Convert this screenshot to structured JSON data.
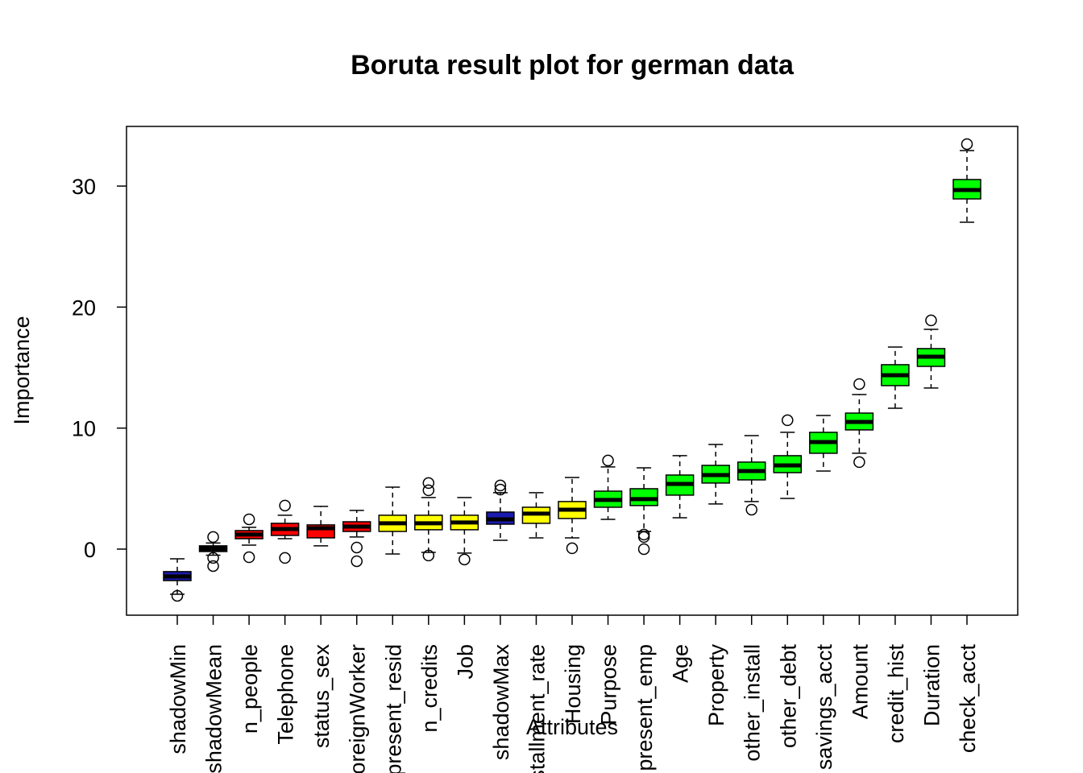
{
  "chart_data": {
    "type": "boxplot",
    "title": "Boruta result plot for german data",
    "x_label": "Attributes",
    "y_label": "Importance",
    "categories": [
      "shadowMin",
      "shadowMean",
      "n_people",
      "Telephone",
      "status_sex",
      "foreignWorker",
      "present_resid",
      "n_credits",
      "Job",
      "shadowMax",
      "installment_rate",
      "Housing",
      "Purpose",
      "present_emp",
      "Age",
      "Property",
      "other_install",
      "other_debt",
      "savings_acct",
      "Amount",
      "credit_hist",
      "Duration",
      "check_acct"
    ],
    "colors": [
      "#1a1ab0",
      "#000000",
      "#ff0000",
      "#ff0000",
      "#ff0000",
      "#ff0000",
      "#ffff00",
      "#ffff00",
      "#ffff00",
      "#1a1ab0",
      "#ffff00",
      "#ffff00",
      "#00ff00",
      "#00ff00",
      "#00ff00",
      "#00ff00",
      "#00ff00",
      "#00ff00",
      "#00ff00",
      "#00ff00",
      "#00ff00",
      "#00ff00",
      "#00ff00"
    ],
    "min": [
      -3.73,
      -0.5,
      0.33,
      0.86,
      0.27,
      1.0,
      -0.4,
      -0.27,
      -0.33,
      0.73,
      0.93,
      0.93,
      2.46,
      1.46,
      2.59,
      3.73,
      3.93,
      4.19,
      6.45,
      7.92,
      11.64,
      13.31,
      27.01
    ],
    "q1": [
      -2.6,
      -0.2,
      0.86,
      1.13,
      0.93,
      1.46,
      1.46,
      1.6,
      1.6,
      2.06,
      2.13,
      2.53,
      3.46,
      3.6,
      4.46,
      5.46,
      5.72,
      6.32,
      7.92,
      9.85,
      13.51,
      15.1,
      28.94
    ],
    "median": [
      -2.26,
      0,
      1.2,
      1.66,
      1.73,
      1.86,
      2.13,
      2.13,
      2.2,
      2.46,
      2.93,
      3.26,
      4.06,
      4.13,
      5.39,
      6.12,
      6.45,
      6.92,
      8.85,
      10.51,
      14.37,
      15.9,
      29.67
    ],
    "q3": [
      -1.86,
      0.27,
      1.53,
      2.13,
      2.0,
      2.26,
      2.8,
      2.8,
      2.8,
      3.06,
      3.46,
      3.93,
      4.79,
      4.99,
      6.12,
      6.92,
      7.19,
      7.72,
      9.65,
      11.24,
      15.24,
      16.57,
      30.54
    ],
    "max": [
      -0.8,
      0.5,
      1.8,
      2.8,
      3.53,
      3.2,
      5.12,
      4.26,
      4.26,
      4.66,
      4.66,
      5.92,
      6.79,
      6.72,
      7.72,
      8.65,
      9.38,
      9.65,
      11.04,
      12.77,
      16.7,
      18.16,
      32.93
    ],
    "outliers": [
      [
        -3.86
      ],
      [
        1.0,
        -0.73,
        -1.4
      ],
      [
        2.46,
        -0.67
      ],
      [
        3.6,
        -0.73
      ],
      [],
      [
        0.13,
        -1.0
      ],
      [],
      [
        -0.53,
        4.86,
        5.46
      ],
      [
        -0.86
      ],
      [
        4.92,
        5.26
      ],
      [],
      [
        0.07
      ],
      [
        7.32
      ],
      [
        1.2,
        1.0,
        0
      ],
      [],
      [],
      [
        3.26
      ],
      [
        10.65
      ],
      [],
      [
        7.19,
        13.64
      ],
      [],
      [
        18.9
      ],
      [
        33.47
      ]
    ],
    "ylim": [
      -5.46,
      34.93
    ],
    "yticks": [
      0,
      10,
      20,
      30
    ]
  }
}
